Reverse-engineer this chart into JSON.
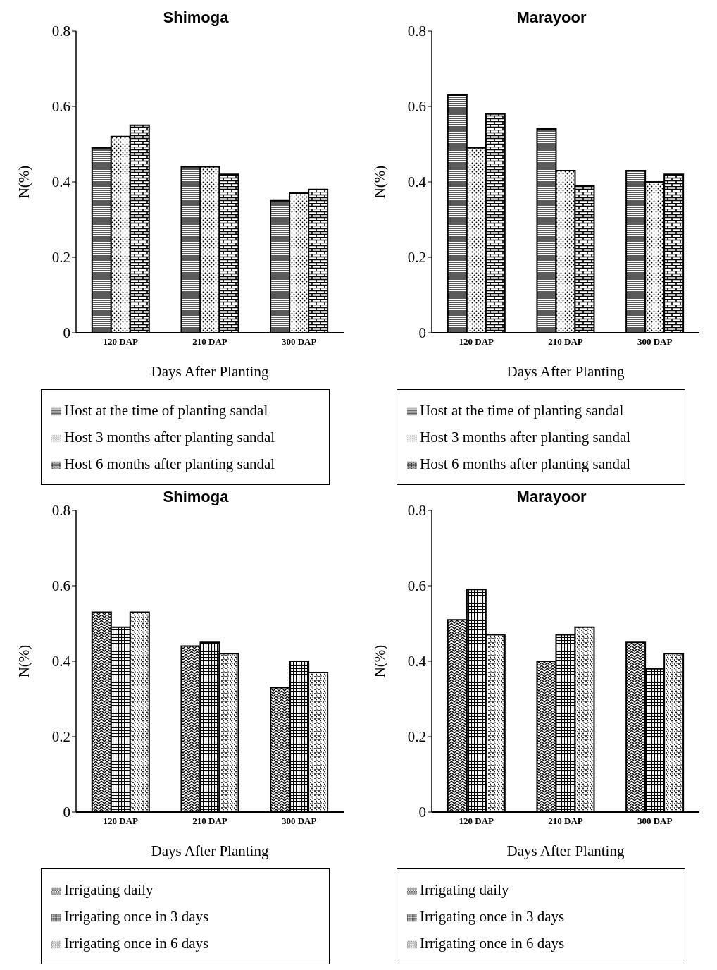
{
  "chart_data": [
    {
      "type": "bar",
      "title": "Shimoga",
      "xlabel": "Days After Planting",
      "ylabel": "N(%)",
      "categories": [
        "120 DAP",
        "210 DAP",
        "300 DAP"
      ],
      "ylim": [
        0,
        0.8
      ],
      "yticks": [
        0,
        0.2,
        0.4,
        0.6,
        0.8
      ],
      "legend": "bottom",
      "series": [
        {
          "name": "Host at the time of planting sandal",
          "color": "#000000",
          "values": [
            0.49,
            0.44,
            0.35
          ]
        },
        {
          "name": "Host 3 months after planting sandal",
          "color": "#000000",
          "values": [
            0.52,
            0.44,
            0.37
          ]
        },
        {
          "name": "Host 6 months after planting sandal",
          "color": "#000000",
          "values": [
            0.55,
            0.42,
            0.38
          ]
        }
      ]
    },
    {
      "type": "bar",
      "title": "Marayoor",
      "xlabel": "Days After Planting",
      "ylabel": "N(%)",
      "categories": [
        "120 DAP",
        "210 DAP",
        "300 DAP"
      ],
      "ylim": [
        0,
        0.8
      ],
      "yticks": [
        0,
        0.2,
        0.4,
        0.6,
        0.8
      ],
      "legend": "bottom",
      "series": [
        {
          "name": "Host at the time of planting sandal",
          "color": "#000000",
          "values": [
            0.63,
            0.54,
            0.43
          ]
        },
        {
          "name": "Host 3 months after planting sandal",
          "color": "#000000",
          "values": [
            0.49,
            0.43,
            0.4
          ]
        },
        {
          "name": "Host 6 months after planting sandal",
          "color": "#000000",
          "values": [
            0.58,
            0.39,
            0.42
          ]
        }
      ]
    },
    {
      "type": "bar",
      "title": "Shimoga",
      "xlabel": "Days After Planting",
      "ylabel": "N(%)",
      "categories": [
        "120 DAP",
        "210 DAP",
        "300 DAP"
      ],
      "ylim": [
        0,
        0.8
      ],
      "yticks": [
        0,
        0.2,
        0.4,
        0.6,
        0.8
      ],
      "legend": "bottom",
      "series": [
        {
          "name": "Irrigating daily",
          "color": "#000000",
          "values": [
            0.53,
            0.44,
            0.33
          ]
        },
        {
          "name": "Irrigating once in 3 days",
          "color": "#000000",
          "values": [
            0.49,
            0.45,
            0.4
          ]
        },
        {
          "name": "Irrigating once in 6 days",
          "color": "#000000",
          "values": [
            0.53,
            0.42,
            0.37
          ]
        }
      ]
    },
    {
      "type": "bar",
      "title": "Marayoor",
      "xlabel": "Days After Planting",
      "ylabel": "N(%)",
      "categories": [
        "120 DAP",
        "210 DAP",
        "300 DAP"
      ],
      "ylim": [
        0,
        0.8
      ],
      "yticks": [
        0,
        0.2,
        0.4,
        0.6,
        0.8
      ],
      "legend": "bottom",
      "series": [
        {
          "name": "Irrigating daily",
          "color": "#000000",
          "values": [
            0.51,
            0.4,
            0.45
          ]
        },
        {
          "name": "Irrigating once in 3 days",
          "color": "#000000",
          "values": [
            0.59,
            0.47,
            0.38
          ]
        },
        {
          "name": "Irrigating once in 6 days",
          "color": "#000000",
          "values": [
            0.47,
            0.49,
            0.42
          ]
        }
      ]
    }
  ]
}
